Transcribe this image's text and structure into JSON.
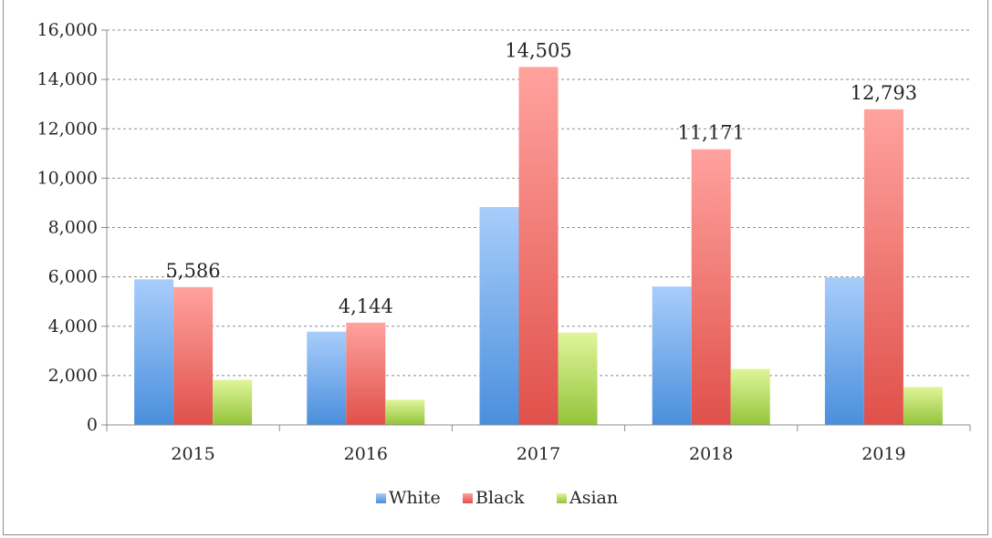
{
  "chart_data": {
    "type": "bar",
    "categories": [
      "2015",
      "2016",
      "2017",
      "2018",
      "2019"
    ],
    "series": [
      {
        "name": "White",
        "values": [
          5900,
          3780,
          8830,
          5610,
          5980
        ],
        "color": "#4a8fdc"
      },
      {
        "name": "Black",
        "values": [
          5586,
          4144,
          14505,
          11171,
          12793
        ],
        "color": "#e0504a"
      },
      {
        "name": "Asian",
        "values": [
          1830,
          1020,
          3740,
          2270,
          1540
        ],
        "color": "#94c43a"
      }
    ],
    "data_labels": [
      {
        "series": "Black",
        "category": "2015",
        "text": "5,586"
      },
      {
        "series": "Black",
        "category": "2016",
        "text": "4,144"
      },
      {
        "series": "Black",
        "category": "2017",
        "text": "14,505"
      },
      {
        "series": "Black",
        "category": "2018",
        "text": "11,171"
      },
      {
        "series": "Black",
        "category": "2019",
        "text": "12,793"
      }
    ],
    "y_ticks": [
      "0",
      "2,000",
      "4,000",
      "6,000",
      "8,000",
      "10,000",
      "12,000",
      "14,000",
      "16,000"
    ],
    "ylim": [
      0,
      16000
    ],
    "grid": true,
    "legend_position": "bottom"
  }
}
